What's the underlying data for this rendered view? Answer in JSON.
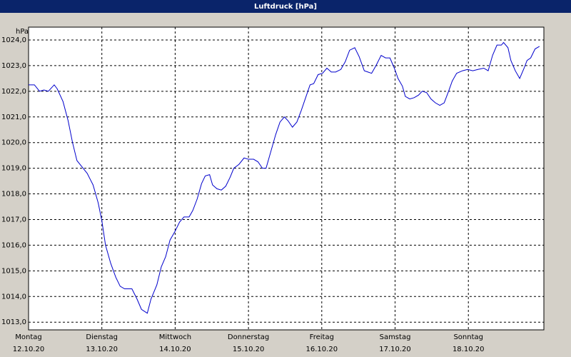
{
  "chart_data": {
    "type": "line",
    "title": "Luftdruck [hPa]",
    "y_unit": "hPa",
    "xlim": [
      0,
      7.03
    ],
    "ylim": [
      1012.7,
      1024.5
    ],
    "xticks": [
      {
        "value": 0,
        "label": "Montag",
        "date": "12.10.20"
      },
      {
        "value": 1,
        "label": "Dienstag",
        "date": "13.10.20"
      },
      {
        "value": 2,
        "label": "Mittwoch",
        "date": "14.10.20"
      },
      {
        "value": 3,
        "label": "Donnerstag",
        "date": "15.10.20"
      },
      {
        "value": 4,
        "label": "Freitag",
        "date": "16.10.20"
      },
      {
        "value": 5,
        "label": "Samstag",
        "date": "17.10.20"
      },
      {
        "value": 6,
        "label": "Sonntag",
        "date": "18.10.20"
      }
    ],
    "yticks": [
      {
        "value": 1013,
        "label": "1013,0"
      },
      {
        "value": 1014,
        "label": "1014,0"
      },
      {
        "value": 1015,
        "label": "1015,0"
      },
      {
        "value": 1016,
        "label": "1016,0"
      },
      {
        "value": 1017,
        "label": "1017,0"
      },
      {
        "value": 1018,
        "label": "1018,0"
      },
      {
        "value": 1019,
        "label": "1019,0"
      },
      {
        "value": 1020,
        "label": "1020,0"
      },
      {
        "value": 1021,
        "label": "1021,0"
      },
      {
        "value": 1022,
        "label": "1022,0"
      },
      {
        "value": 1023,
        "label": "1023,0"
      },
      {
        "value": 1024,
        "label": "1024,0"
      }
    ],
    "grid": true,
    "color": "#0000cc",
    "x": [
      0,
      0.08,
      0.15,
      0.21,
      0.27,
      0.35,
      0.39,
      0.47,
      0.54,
      0.6,
      0.66,
      0.73,
      0.8,
      0.88,
      0.95,
      1.0,
      1.05,
      1.12,
      1.19,
      1.25,
      1.31,
      1.41,
      1.48,
      1.54,
      1.62,
      1.67,
      1.75,
      1.81,
      1.87,
      1.93,
      2.0,
      2.06,
      2.12,
      2.19,
      2.24,
      2.3,
      2.36,
      2.41,
      2.47,
      2.51,
      2.57,
      2.63,
      2.69,
      2.75,
      2.8,
      2.87,
      2.94,
      3.0,
      3.07,
      3.13,
      3.19,
      3.24,
      3.31,
      3.37,
      3.43,
      3.49,
      3.54,
      3.6,
      3.66,
      3.72,
      3.78,
      3.84,
      3.89,
      3.95,
      4.01,
      4.07,
      4.13,
      4.19,
      4.26,
      4.32,
      4.38,
      4.45,
      4.51,
      4.58,
      4.63,
      4.68,
      4.74,
      4.81,
      4.87,
      4.93,
      4.99,
      5.04,
      5.1,
      5.14,
      5.2,
      5.26,
      5.32,
      5.37,
      5.43,
      5.49,
      5.55,
      5.61,
      5.67,
      5.73,
      5.78,
      5.84,
      5.92,
      5.99,
      6.06,
      6.13,
      6.21,
      6.27,
      6.33,
      6.39,
      6.45,
      6.48,
      6.54,
      6.58,
      6.64,
      6.7,
      6.76,
      6.8,
      6.85,
      6.91,
      6.97
    ],
    "values": [
      1022.25,
      1022.25,
      1022.0,
      1022.05,
      1022.0,
      1022.25,
      1022.1,
      1021.6,
      1020.85,
      1020.0,
      1019.3,
      1019.05,
      1018.8,
      1018.35,
      1017.65,
      1016.95,
      1016.0,
      1015.3,
      1014.75,
      1014.4,
      1014.3,
      1014.3,
      1013.9,
      1013.5,
      1013.35,
      1013.9,
      1014.45,
      1015.15,
      1015.55,
      1016.2,
      1016.55,
      1016.9,
      1017.1,
      1017.1,
      1017.35,
      1017.8,
      1018.4,
      1018.7,
      1018.75,
      1018.35,
      1018.2,
      1018.15,
      1018.3,
      1018.65,
      1019.0,
      1019.15,
      1019.4,
      1019.35,
      1019.35,
      1019.25,
      1019.0,
      1019.0,
      1019.7,
      1020.3,
      1020.8,
      1021.0,
      1020.85,
      1020.6,
      1020.8,
      1021.25,
      1021.75,
      1022.25,
      1022.3,
      1022.65,
      1022.7,
      1022.9,
      1022.75,
      1022.75,
      1022.85,
      1023.15,
      1023.6,
      1023.7,
      1023.35,
      1022.8,
      1022.75,
      1022.7,
      1023.0,
      1023.4,
      1023.3,
      1023.3,
      1022.9,
      1022.5,
      1022.2,
      1021.8,
      1021.7,
      1021.75,
      1021.85,
      1022.0,
      1021.95,
      1021.7,
      1021.55,
      1021.45,
      1021.55,
      1022.0,
      1022.4,
      1022.7,
      1022.8,
      1022.85,
      1022.8,
      1022.85,
      1022.9,
      1022.8,
      1023.4,
      1023.8,
      1023.8,
      1023.9,
      1023.7,
      1023.2,
      1022.8,
      1022.5,
      1022.9,
      1023.2,
      1023.3,
      1023.65,
      1023.75
    ]
  }
}
